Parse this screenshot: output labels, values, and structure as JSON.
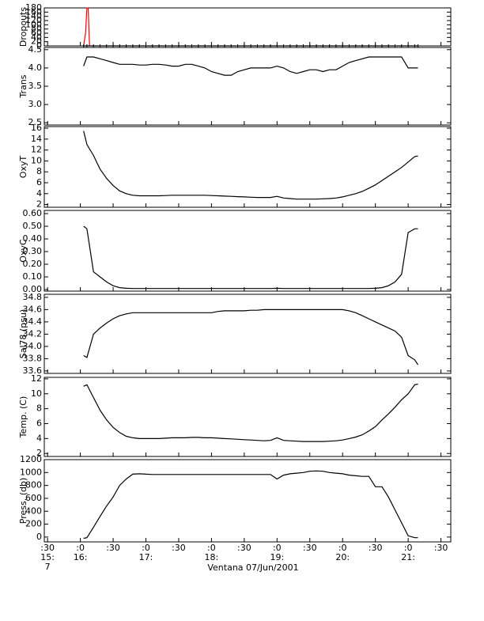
{
  "chart_data": {
    "type": "line",
    "xlabel": "Ventana 07/Jun/2001",
    "xlim": [
      15.45,
      21.65
    ],
    "xticks": [
      {
        "value": 15.5,
        "label": ":30"
      },
      {
        "value": 16,
        "label": ":0"
      },
      {
        "value": 16.5,
        "label": ":30"
      },
      {
        "value": 17,
        "label": ":0"
      },
      {
        "value": 17.5,
        "label": ":30"
      },
      {
        "value": 18,
        "label": ":0"
      },
      {
        "value": 18.5,
        "label": ":30"
      },
      {
        "value": 19,
        "label": ":0"
      },
      {
        "value": 19.5,
        "label": ":30"
      },
      {
        "value": 20,
        "label": ":0"
      },
      {
        "value": 20.5,
        "label": ":30"
      },
      {
        "value": 21,
        "label": ":0"
      },
      {
        "value": 21.5,
        "label": ":30"
      }
    ],
    "x_hour_labels": [
      {
        "value": 15.5,
        "label": "15:"
      },
      {
        "value": 16,
        "label": "16:"
      },
      {
        "value": 17,
        "label": "17:"
      },
      {
        "value": 18,
        "label": "18:"
      },
      {
        "value": 19,
        "label": "19:"
      },
      {
        "value": 20,
        "label": "20:"
      },
      {
        "value": 21,
        "label": "21:"
      }
    ],
    "x_date_label": {
      "value": 15.5,
      "label": "7"
    },
    "x": [
      16.05,
      16.1,
      16.2,
      16.3,
      16.4,
      16.5,
      16.6,
      16.7,
      16.8,
      16.9,
      17.0,
      17.1,
      17.2,
      17.3,
      17.4,
      17.5,
      17.6,
      17.7,
      17.8,
      17.9,
      18.0,
      18.1,
      18.2,
      18.3,
      18.4,
      18.5,
      18.6,
      18.7,
      18.8,
      18.9,
      19.0,
      19.1,
      19.2,
      19.3,
      19.4,
      19.5,
      19.6,
      19.7,
      19.8,
      19.9,
      20.0,
      20.1,
      20.2,
      20.3,
      20.4,
      20.5,
      20.6,
      20.7,
      20.8,
      20.9,
      21.0,
      21.1,
      21.15
    ],
    "panels": [
      {
        "ylabel": "Dropouts",
        "ylim": [
          0,
          180
        ],
        "yticks": [
          0,
          20,
          40,
          60,
          80,
          100,
          120,
          140,
          160,
          180
        ],
        "series": [
          {
            "color": "#ff0000",
            "x": [
              16.05,
              16.08,
              16.1,
              16.12,
              16.14
            ],
            "values": [
              0,
              60,
              180,
              180,
              0
            ]
          },
          {
            "color": "#000000",
            "marker": "+",
            "values": [
              0,
              0,
              0,
              0,
              0,
              0,
              0,
              0,
              0,
              0,
              0,
              0,
              0,
              0,
              0,
              0,
              0,
              0,
              0,
              0,
              0,
              0,
              0,
              0,
              0,
              0,
              0,
              0,
              0,
              0,
              0,
              0,
              0,
              0,
              0,
              0,
              0,
              0,
              0,
              0,
              0,
              0,
              0,
              0,
              0,
              0,
              0,
              0,
              0,
              0,
              0,
              0,
              0
            ]
          }
        ]
      },
      {
        "ylabel": "Trans",
        "ylim": [
          2.44,
          4.56
        ],
        "yticks": [
          2.5,
          {
            "value": 3,
            "label": "3.0"
          },
          3.5,
          {
            "value": 4,
            "label": "4.0"
          },
          4.5
        ],
        "series": [
          {
            "color": "#000000",
            "values": [
              4.05,
              4.3,
              4.3,
              4.25,
              4.2,
              4.15,
              4.1,
              4.1,
              4.1,
              4.08,
              4.08,
              4.1,
              4.1,
              4.08,
              4.05,
              4.05,
              4.1,
              4.1,
              4.05,
              4.0,
              3.9,
              3.85,
              3.8,
              3.8,
              3.9,
              3.95,
              4.0,
              4.0,
              4.0,
              4.0,
              4.05,
              4.0,
              3.9,
              3.85,
              3.9,
              3.95,
              3.95,
              3.9,
              3.95,
              3.95,
              4.05,
              4.15,
              4.2,
              4.25,
              4.3,
              4.3,
              4.3,
              4.3,
              4.3,
              4.3,
              4.0,
              4.0,
              4.0
            ]
          }
        ]
      },
      {
        "ylabel": "OxyT",
        "ylim": [
          1.5,
          16.3
        ],
        "yticks": [
          2,
          4,
          6,
          8,
          10,
          12,
          14,
          16
        ],
        "series": [
          {
            "color": "#000000",
            "values": [
              15.5,
              13,
              11,
              8.5,
              6.8,
              5.5,
              4.5,
              4.0,
              3.7,
              3.6,
              3.6,
              3.6,
              3.6,
              3.65,
              3.7,
              3.7,
              3.7,
              3.7,
              3.7,
              3.7,
              3.65,
              3.6,
              3.55,
              3.5,
              3.45,
              3.4,
              3.35,
              3.3,
              3.3,
              3.3,
              3.5,
              3.2,
              3.1,
              3.0,
              3.0,
              3.0,
              3.0,
              3.05,
              3.1,
              3.2,
              3.4,
              3.7,
              4.0,
              4.4,
              5.0,
              5.6,
              6.4,
              7.2,
              8.0,
              8.8,
              9.8,
              10.8,
              10.9
            ]
          }
        ]
      },
      {
        "ylabel": "OxyC",
        "ylim": [
          -0.0125,
          0.625
        ],
        "yticks": [
          {
            "value": 0,
            "label": "0.00"
          },
          {
            "value": 0.1,
            "label": "0.10"
          },
          {
            "value": 0.2,
            "label": "0.20"
          },
          {
            "value": 0.3,
            "label": "0.30"
          },
          {
            "value": 0.4,
            "label": "0.40"
          },
          {
            "value": 0.5,
            "label": "0.50"
          },
          {
            "value": 0.6,
            "label": "0.60"
          }
        ],
        "series": [
          {
            "color": "#000000",
            "values": [
              0.5,
              0.48,
              0.14,
              0.1,
              0.06,
              0.03,
              0.015,
              0.01,
              0.008,
              0.008,
              0.008,
              0.008,
              0.008,
              0.008,
              0.008,
              0.008,
              0.008,
              0.008,
              0.008,
              0.008,
              0.008,
              0.008,
              0.008,
              0.008,
              0.008,
              0.008,
              0.008,
              0.008,
              0.008,
              0.008,
              0.01,
              0.008,
              0.008,
              0.008,
              0.008,
              0.008,
              0.008,
              0.008,
              0.008,
              0.008,
              0.008,
              0.008,
              0.008,
              0.008,
              0.008,
              0.01,
              0.015,
              0.03,
              0.06,
              0.12,
              0.45,
              0.48,
              0.48
            ]
          }
        ]
      },
      {
        "ylabel": "Sal78 (psu)",
        "ylim": [
          33.56,
          34.85
        ],
        "yticks": [
          33.6,
          33.8,
          {
            "value": 34,
            "label": "34.0"
          },
          34.2,
          34.4,
          34.6,
          34.8
        ],
        "series": [
          {
            "color": "#000000",
            "values": [
              33.85,
              33.82,
              34.2,
              34.3,
              34.38,
              34.45,
              34.5,
              34.53,
              34.55,
              34.55,
              34.55,
              34.55,
              34.55,
              34.55,
              34.55,
              34.55,
              34.55,
              34.55,
              34.55,
              34.55,
              34.55,
              34.57,
              34.58,
              34.58,
              34.58,
              34.58,
              34.59,
              34.59,
              34.6,
              34.6,
              34.6,
              34.6,
              34.6,
              34.6,
              34.6,
              34.6,
              34.6,
              34.6,
              34.6,
              34.6,
              34.6,
              34.58,
              34.55,
              34.5,
              34.45,
              34.4,
              34.35,
              34.3,
              34.25,
              34.15,
              33.85,
              33.78,
              33.7
            ]
          }
        ]
      },
      {
        "ylabel": "Temp. (C)",
        "ylim": [
          1.6,
          12.2
        ],
        "yticks": [
          2,
          4,
          6,
          8,
          10,
          12
        ],
        "series": [
          {
            "color": "#000000",
            "values": [
              11.0,
              11.2,
              9.5,
              7.8,
              6.5,
              5.5,
              4.8,
              4.3,
              4.1,
              4.0,
              4.0,
              4.0,
              4.0,
              4.05,
              4.1,
              4.1,
              4.1,
              4.15,
              4.15,
              4.1,
              4.1,
              4.05,
              4.0,
              3.95,
              3.9,
              3.85,
              3.8,
              3.75,
              3.7,
              3.75,
              4.1,
              3.75,
              3.7,
              3.65,
              3.6,
              3.6,
              3.6,
              3.6,
              3.65,
              3.7,
              3.8,
              4.0,
              4.2,
              4.5,
              5.0,
              5.6,
              6.5,
              7.3,
              8.2,
              9.2,
              10.0,
              11.2,
              11.3
            ]
          }
        ]
      },
      {
        "ylabel": "Press. (db)",
        "ylim": [
          -75,
          1200
        ],
        "yticks": [
          0,
          200,
          400,
          600,
          800,
          1000,
          1200
        ],
        "series": [
          {
            "color": "#000000",
            "values": [
              -20,
              -10,
              150,
              320,
              480,
              620,
              800,
              900,
              975,
              980,
              975,
              970,
              970,
              970,
              970,
              970,
              970,
              970,
              970,
              970,
              970,
              970,
              970,
              970,
              970,
              970,
              970,
              970,
              970,
              970,
              900,
              960,
              980,
              990,
              1000,
              1020,
              1025,
              1020,
              1000,
              990,
              980,
              960,
              950,
              940,
              940,
              780,
              780,
              620,
              420,
              220,
              20,
              -10,
              -10
            ]
          }
        ]
      }
    ]
  }
}
